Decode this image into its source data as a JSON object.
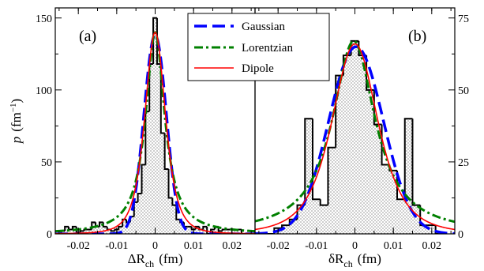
{
  "chart_data": [
    {
      "panel_label": "(a)",
      "type": "line",
      "xlabel": "ΔR",
      "xlabel_sub": "ch",
      "xlabel_unit": "(fm)",
      "ylabel": "p",
      "ylabel_unit": "(fm",
      "ylabel_sup": "−1",
      "ylabel_close": ")",
      "xlim": [
        -0.026,
        0.026
      ],
      "ylim": [
        0,
        157
      ],
      "x_ticks": [
        -0.02,
        -0.01,
        0,
        0.01,
        0.02
      ],
      "x_tick_labels": [
        "-0.02",
        "-0.01",
        "0",
        "0.01",
        "0.02"
      ],
      "y_ticks": [
        0,
        50,
        100,
        150
      ],
      "y_tick_labels": [
        "0",
        "50",
        "100",
        "150"
      ],
      "histogram": {
        "bin_edges": [
          -0.0255,
          -0.0245,
          -0.0235,
          -0.0225,
          -0.0215,
          -0.0205,
          -0.0195,
          -0.0185,
          -0.0175,
          -0.0165,
          -0.0155,
          -0.0145,
          -0.0135,
          -0.0125,
          -0.0115,
          -0.0105,
          -0.0095,
          -0.0085,
          -0.0075,
          -0.0065,
          -0.0055,
          -0.0045,
          -0.0035,
          -0.0025,
          -0.0015,
          -0.0005,
          0.0005,
          0.0015,
          0.0025,
          0.0035,
          0.0045,
          0.0055,
          0.0065,
          0.0075,
          0.0085,
          0.0095,
          0.0105,
          0.0115,
          0.0125,
          0.0135,
          0.0145,
          0.0155,
          0.0165,
          0.0175,
          0.0185,
          0.0195,
          0.0205,
          0.0215,
          0.0225,
          0.0235,
          0.0245,
          0.0255
        ],
        "counts": [
          0,
          2,
          5,
          3,
          5,
          1,
          2,
          3,
          3,
          8,
          5,
          8,
          5,
          3,
          2,
          3,
          5,
          10,
          8,
          12,
          22,
          28,
          48,
          85,
          118,
          150,
          118,
          70,
          45,
          25,
          20,
          10,
          8,
          5,
          5,
          3,
          5,
          3,
          5,
          0,
          3,
          5,
          2,
          3,
          3,
          3,
          3,
          3,
          0,
          0,
          0
        ]
      },
      "series": [
        {
          "name": "Gaussian",
          "color": "#0000ff",
          "curve": "gaussian",
          "amplitude": 138,
          "center": 0.0,
          "width": 0.0029
        },
        {
          "name": "Lorentzian",
          "color": "#008000",
          "curve": "lorentzian",
          "amplitude": 140,
          "center": 0.0,
          "width": 0.003
        },
        {
          "name": "Dipole",
          "color": "#ff0000",
          "curve": "dipole",
          "amplitude": 140,
          "center": 0.0,
          "width": 0.0049
        }
      ]
    },
    {
      "panel_label": "(b)",
      "type": "line",
      "xlabel": "δR",
      "xlabel_sub": "ch",
      "xlabel_unit": "(fm)",
      "xlim": [
        -0.026,
        0.026
      ],
      "ylim": [
        0,
        78.5
      ],
      "x_ticks": [
        -0.02,
        -0.01,
        0,
        0.01,
        0.02
      ],
      "x_tick_labels": [
        "-0.02",
        "-0.01",
        "0",
        "0.01",
        "0.02"
      ],
      "y_ticks": [
        0,
        25,
        50,
        75
      ],
      "y_tick_labels": [
        "0",
        "25",
        "50",
        "75"
      ],
      "histogram": {
        "bin_edges": [
          -0.023,
          -0.021,
          -0.019,
          -0.017,
          -0.015,
          -0.013,
          -0.011,
          -0.009,
          -0.007,
          -0.005,
          -0.003,
          -0.001,
          0.001,
          0.003,
          0.005,
          0.007,
          0.009,
          0.011,
          0.013,
          0.015,
          0.017,
          0.019,
          0.021,
          0.023
        ],
        "counts": [
          0,
          2,
          3,
          5,
          10,
          40,
          12,
          10,
          30,
          55,
          62,
          67,
          62,
          50,
          38,
          24,
          22,
          12,
          40,
          10,
          3,
          3,
          0
        ]
      },
      "series": [
        {
          "name": "Gaussian",
          "color": "#0000ff",
          "curve": "gaussian",
          "amplitude": 65,
          "center": 0.0003,
          "width": 0.0071
        },
        {
          "name": "Lorentzian",
          "color": "#008000",
          "curve": "lorentzian",
          "amplitude": 67,
          "center": -0.0003,
          "width": 0.0068
        },
        {
          "name": "Dipole",
          "color": "#ff0000",
          "curve": "dipole",
          "amplitude": 66,
          "center": 0.0,
          "width": 0.011
        }
      ]
    }
  ],
  "legend": {
    "placement": "top-center",
    "entries": [
      {
        "label": "Gaussian",
        "color": "#0000ff",
        "style": "dashed"
      },
      {
        "label": "Lorentzian",
        "color": "#008000",
        "style": "dash-dot"
      },
      {
        "label": "Dipole",
        "color": "#ff0000",
        "style": "solid"
      }
    ]
  },
  "colors": {
    "histogram_edge": "#000000",
    "histogram_fill": "stipple-gray",
    "gaussian": "#0000ff",
    "lorentzian": "#008000",
    "dipole": "#ff0000"
  }
}
